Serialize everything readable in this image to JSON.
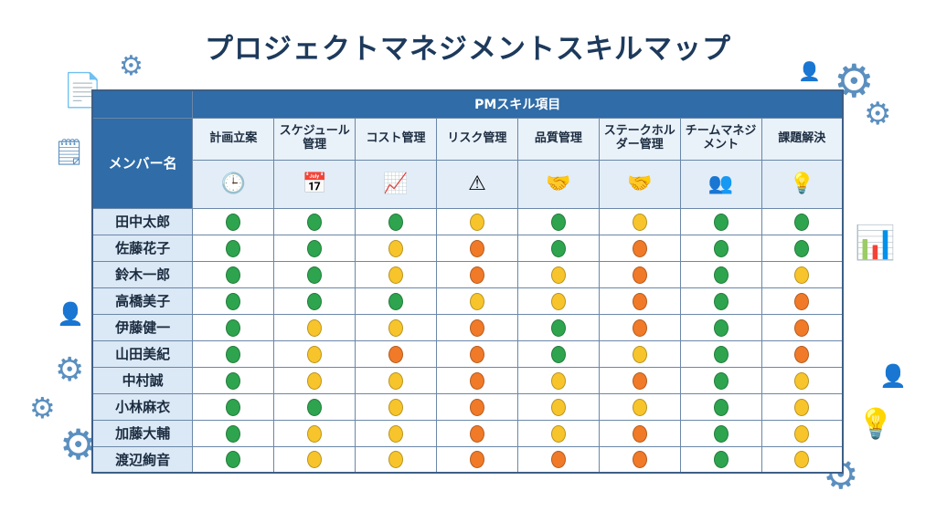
{
  "title": "プロジェクトマネジメントスキルマップ",
  "header": {
    "group": "PMスキル項目",
    "member_col": "メンバー名"
  },
  "skills": [
    {
      "label": "計画立案",
      "icon": "clock-icon",
      "glyph": "🕒"
    },
    {
      "label": "スケジュール管理",
      "icon": "calendar-gear-icon",
      "glyph": "📅"
    },
    {
      "label": "コスト管理",
      "icon": "bar-chart-icon",
      "glyph": "📈"
    },
    {
      "label": "リスク管理",
      "icon": "warning-icon",
      "glyph": "⚠"
    },
    {
      "label": "品質管理",
      "icon": "handshake-icon",
      "glyph": "🤝"
    },
    {
      "label": "ステークホルダー管理",
      "icon": "handshake-icon",
      "glyph": "🤝"
    },
    {
      "label": "チームマネジメント",
      "icon": "team-icon",
      "glyph": "👥"
    },
    {
      "label": "課題解決",
      "icon": "lightbulb-icon",
      "glyph": "💡"
    }
  ],
  "levels": {
    "high": "#2ea44f",
    "mid": "#f7c52b",
    "low": "#f07a28"
  },
  "members": [
    {
      "name": "田中太郎",
      "ratings": [
        "high",
        "high",
        "high",
        "mid",
        "high",
        "mid",
        "high",
        "high"
      ]
    },
    {
      "name": "佐藤花子",
      "ratings": [
        "high",
        "high",
        "mid",
        "low",
        "high",
        "low",
        "high",
        "high"
      ]
    },
    {
      "name": "鈴木一郎",
      "ratings": [
        "high",
        "high",
        "mid",
        "low",
        "mid",
        "low",
        "high",
        "mid"
      ]
    },
    {
      "name": "高橋美子",
      "ratings": [
        "high",
        "high",
        "high",
        "mid",
        "mid",
        "low",
        "high",
        "low"
      ]
    },
    {
      "name": "伊藤健一",
      "ratings": [
        "high",
        "mid",
        "mid",
        "low",
        "high",
        "low",
        "high",
        "low"
      ]
    },
    {
      "name": "山田美紀",
      "ratings": [
        "high",
        "mid",
        "low",
        "low",
        "high",
        "mid",
        "high",
        "low"
      ]
    },
    {
      "name": "中村誠",
      "ratings": [
        "high",
        "mid",
        "mid",
        "low",
        "mid",
        "low",
        "high",
        "mid"
      ]
    },
    {
      "name": "小林麻衣",
      "ratings": [
        "high",
        "high",
        "mid",
        "low",
        "mid",
        "mid",
        "high",
        "mid"
      ]
    },
    {
      "name": "加藤大輔",
      "ratings": [
        "high",
        "mid",
        "mid",
        "low",
        "mid",
        "low",
        "high",
        "mid"
      ]
    },
    {
      "name": "渡辺絢音",
      "ratings": [
        "high",
        "mid",
        "mid",
        "low",
        "low",
        "low",
        "high",
        "mid"
      ]
    }
  ]
}
